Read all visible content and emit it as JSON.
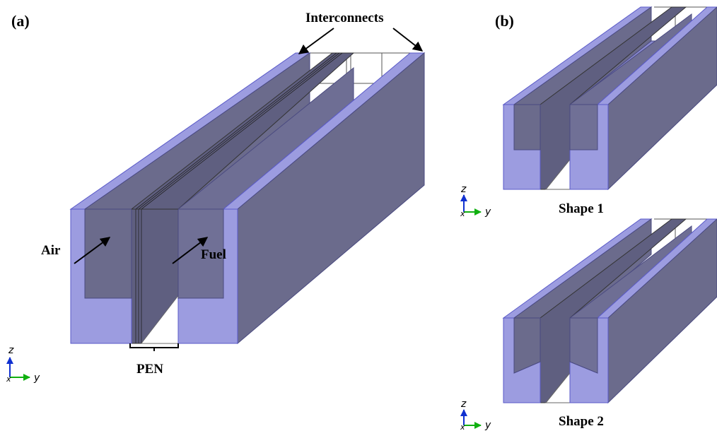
{
  "panel_a": {
    "tag": "(a)",
    "interconnects_label": "Interconnects",
    "air_label": "Air",
    "fuel_label": "Fuel",
    "pen_label": "PEN",
    "axis": {
      "z": "z",
      "y": "y",
      "x": "x"
    }
  },
  "panel_b": {
    "tag": "(b)",
    "shape1_label": "Shape 1",
    "shape2_label": "Shape 2",
    "axis": {
      "z": "z",
      "y": "y",
      "x": "x"
    }
  },
  "colors": {
    "dark_face": "#6b6b8c",
    "light_face": "#9c9ce0",
    "edge": "#5a5ac8",
    "line": "#333333",
    "background": "#ffffff"
  }
}
